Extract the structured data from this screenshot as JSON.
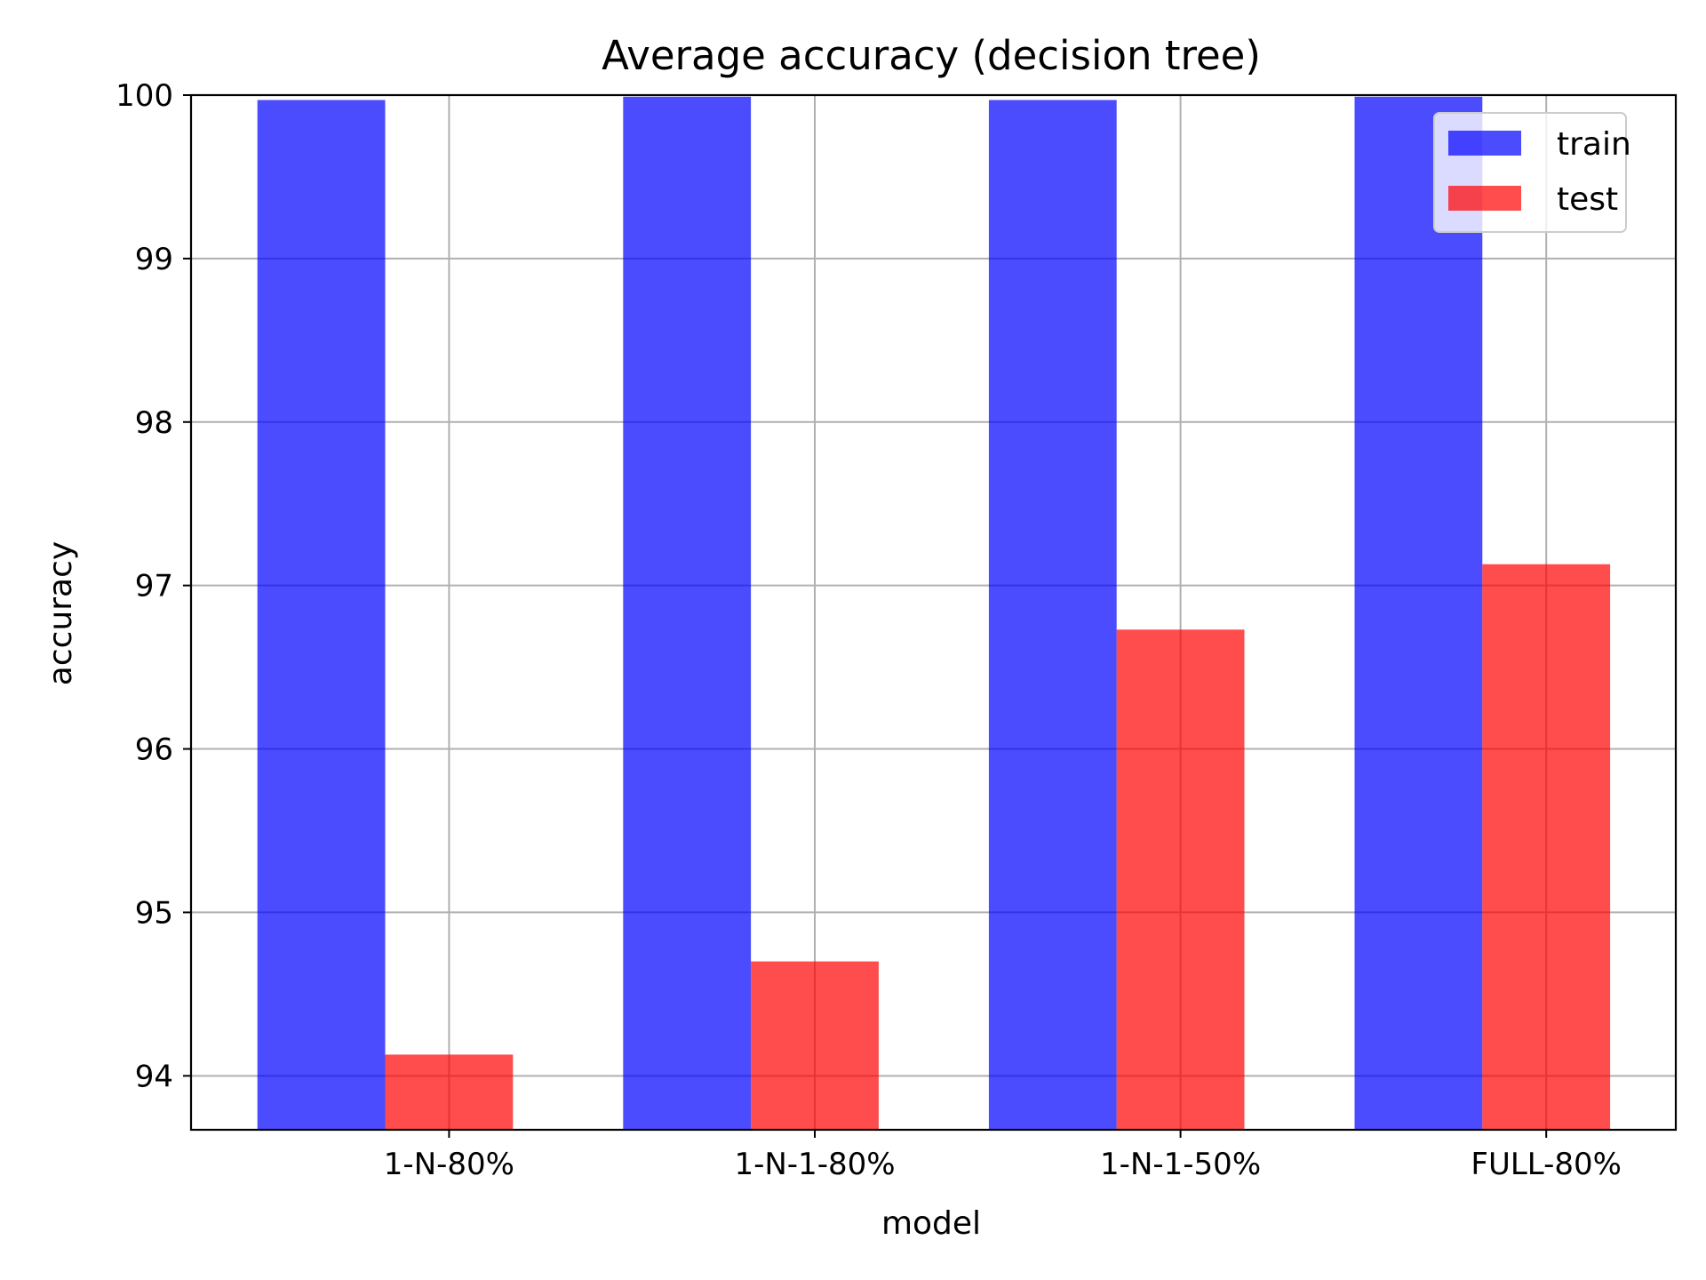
{
  "chart_data": {
    "type": "bar",
    "title": "Average accuracy (decision tree)",
    "xlabel": "model",
    "ylabel": "accuracy",
    "categories": [
      "1-N-80%",
      "1-N-1-80%",
      "1-N-1-50%",
      "FULL-80%"
    ],
    "series": [
      {
        "name": "train",
        "color": "#0000ff",
        "opacity": 0.7,
        "values": [
          99.97,
          99.99,
          99.97,
          99.99
        ]
      },
      {
        "name": "test",
        "color": "#ff0000",
        "opacity": 0.7,
        "values": [
          94.13,
          94.7,
          96.73,
          97.13
        ]
      }
    ],
    "ylim": [
      93.67,
      100.0
    ],
    "yticks": [
      "94",
      "95",
      "96",
      "97",
      "98",
      "99",
      "100"
    ],
    "grid": true,
    "legend_position": "top-right"
  }
}
